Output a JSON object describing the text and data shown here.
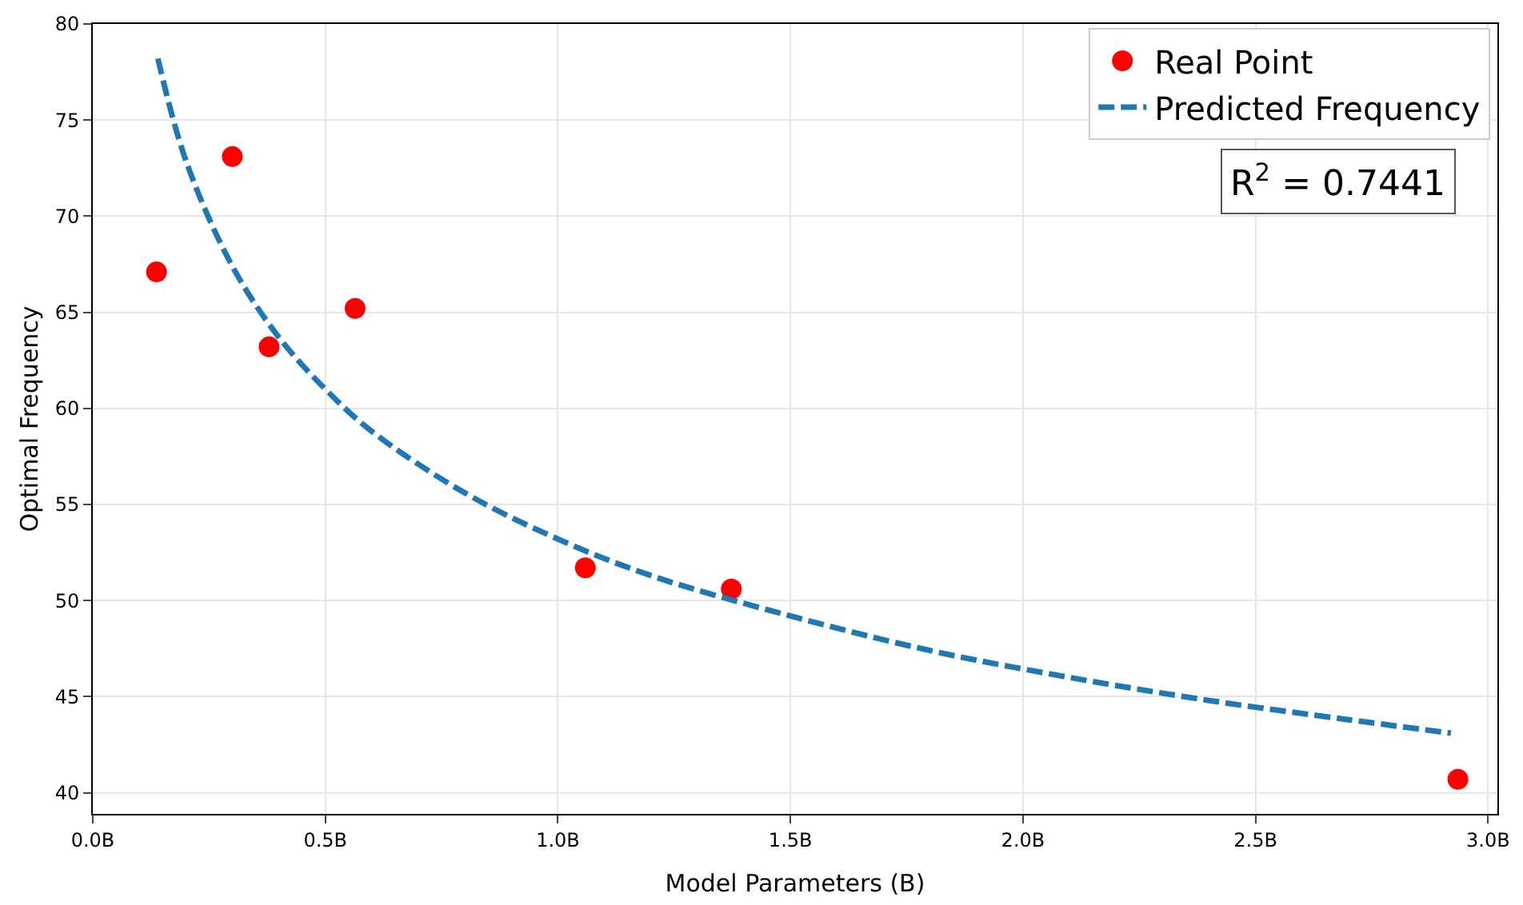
{
  "chart_data": {
    "type": "scatter",
    "xlabel": "Model Parameters (B)",
    "ylabel": "Optimal Frequency",
    "series": [
      {
        "name": "Real Point",
        "color": "#ff0000",
        "marker": "circle",
        "x": [
          0.137,
          0.3,
          0.379,
          0.564,
          1.059,
          1.373,
          2.935
        ],
        "values": [
          67.1,
          73.1,
          63.2,
          65.2,
          51.7,
          50.6,
          40.7
        ]
      },
      {
        "name": "Predicted Frequency",
        "type": "line",
        "color": "#1f77b4",
        "marker": "none",
        "line_style": "dashed",
        "x": [
          0.14,
          0.2,
          0.3,
          0.4,
          0.5,
          0.6,
          0.8,
          1.0,
          1.2,
          1.5,
          1.8,
          2.1,
          2.4,
          2.7,
          2.92
        ],
        "values": [
          78.2,
          72.9,
          67.4,
          63.7,
          61.0,
          58.8,
          55.6,
          53.2,
          51.3,
          49.2,
          47.4,
          46.0,
          44.8,
          43.8,
          43.1
        ]
      }
    ],
    "annotations": [
      "R$^{2}$ = 0.7441"
    ],
    "xlim": [
      0,
      3.02
    ],
    "ylim": [
      38.9,
      80
    ],
    "xticks": [
      {
        "value": 0,
        "label": "0.0B"
      },
      {
        "value": 0.5,
        "label": "0.5B"
      },
      {
        "value": 1.0,
        "label": "1.0B"
      },
      {
        "value": 1.5,
        "label": "1.5B"
      },
      {
        "value": 2.0,
        "label": "2.0B"
      },
      {
        "value": 2.5,
        "label": "2.5B"
      },
      {
        "value": 3.0,
        "label": "3.0B"
      }
    ],
    "yticks": [
      40,
      45,
      50,
      55,
      60,
      65,
      70,
      75,
      80
    ],
    "grid": true,
    "legend": "top right"
  }
}
